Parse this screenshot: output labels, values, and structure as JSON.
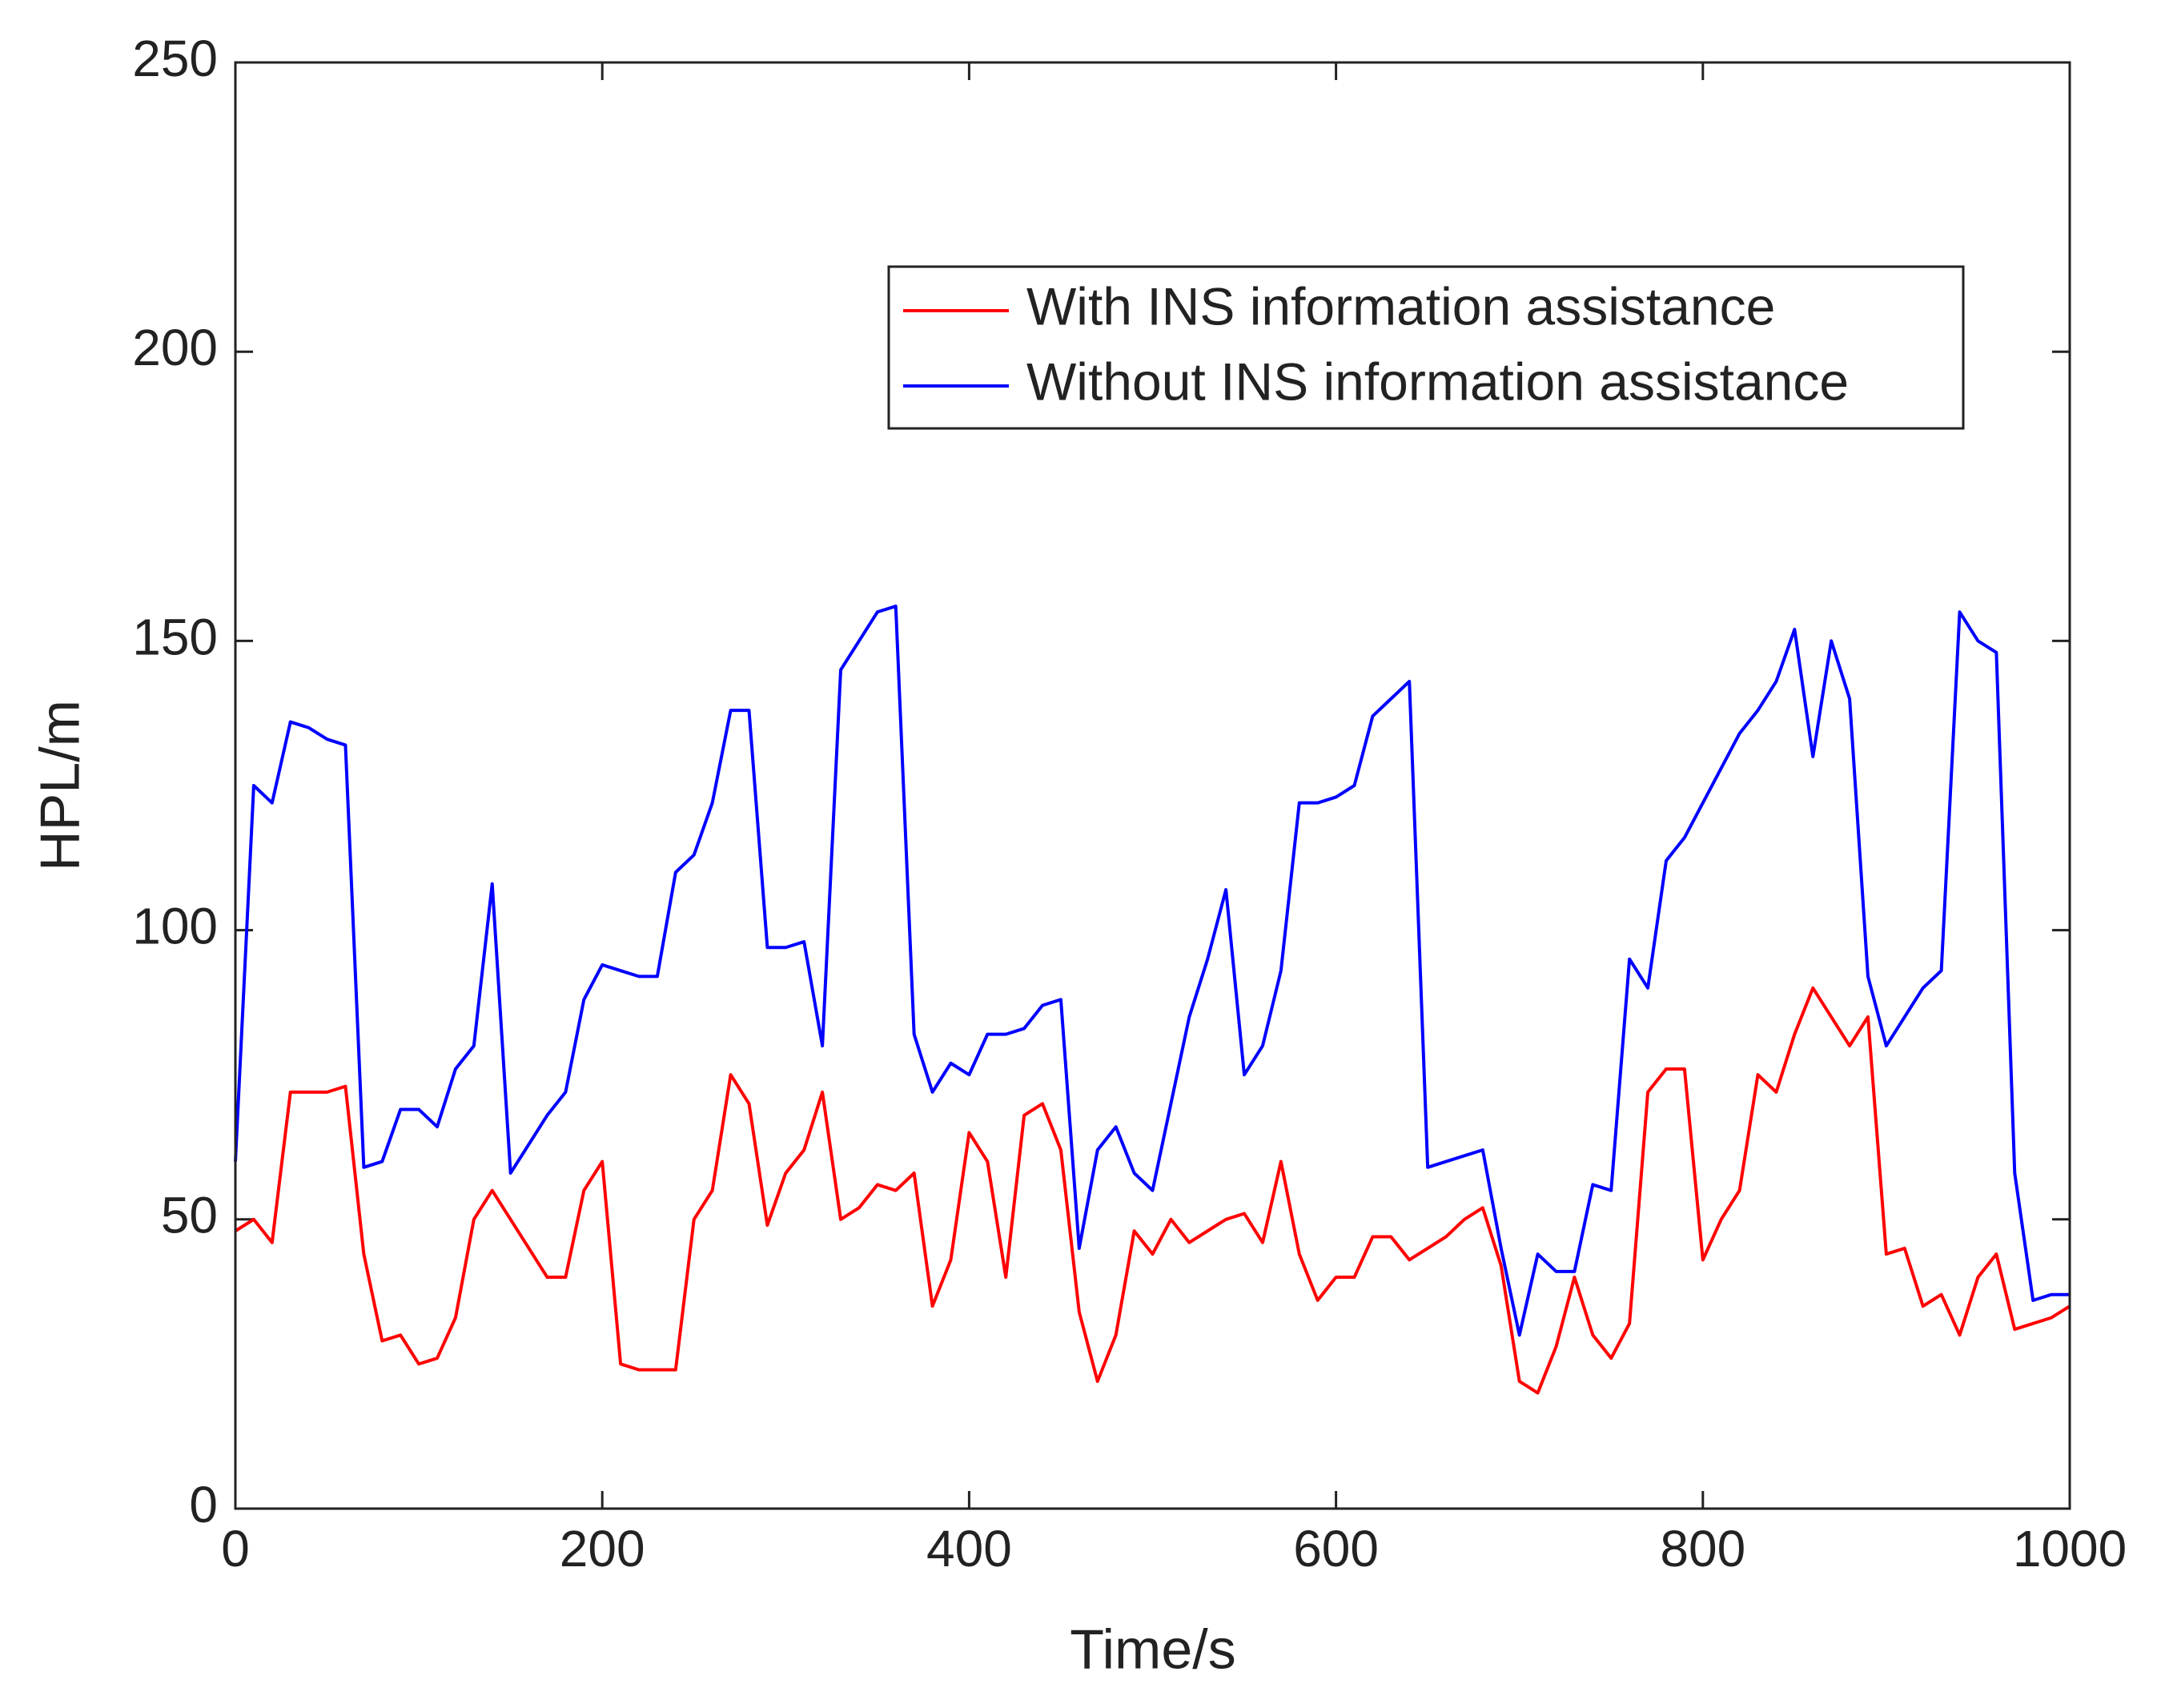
{
  "chart_data": {
    "type": "line",
    "xlabel": "Time/s",
    "ylabel": "HPL/m",
    "x": [
      0,
      10,
      20,
      30,
      40,
      50,
      60,
      70,
      80,
      90,
      100,
      110,
      120,
      130,
      140,
      150,
      160,
      170,
      180,
      190,
      200,
      210,
      220,
      230,
      240,
      250,
      260,
      270,
      280,
      290,
      300,
      310,
      320,
      330,
      340,
      350,
      360,
      370,
      380,
      390,
      400,
      410,
      420,
      430,
      440,
      450,
      460,
      470,
      480,
      490,
      500,
      510,
      520,
      530,
      540,
      550,
      560,
      570,
      580,
      590,
      600,
      610,
      620,
      630,
      640,
      650,
      660,
      670,
      680,
      690,
      700,
      710,
      720,
      730,
      740,
      750,
      760,
      770,
      780,
      790,
      800,
      810,
      820,
      830,
      840,
      850,
      860,
      870,
      880,
      890,
      900,
      910,
      920,
      930,
      940,
      950,
      960,
      970,
      980,
      990,
      1000
    ],
    "series": [
      {
        "name": "With INS information assistance",
        "color": "#ff0000",
        "values": [
          48,
          50,
          46,
          72,
          72,
          72,
          73,
          44,
          29,
          30,
          25,
          26,
          33,
          50,
          55,
          50,
          45,
          40,
          40,
          55,
          60,
          25,
          24,
          24,
          24,
          50,
          55,
          75,
          70,
          49,
          58,
          62,
          72,
          50,
          52,
          56,
          55,
          58,
          35,
          43,
          65,
          60,
          40,
          68,
          70,
          62,
          34,
          22,
          30,
          48,
          44,
          50,
          46,
          48,
          50,
          51,
          46,
          60,
          44,
          36,
          40,
          40,
          47,
          47,
          43,
          45,
          47,
          50,
          52,
          42,
          22,
          20,
          28,
          40,
          30,
          26,
          32,
          72,
          76,
          76,
          43,
          50,
          55,
          75,
          72,
          82,
          90,
          85,
          80,
          85,
          44,
          45,
          35,
          37,
          30,
          40,
          44,
          31,
          32,
          33,
          35
        ]
      },
      {
        "name": "Without INS information assistance",
        "color": "#0000ff",
        "values": [
          60,
          125,
          122,
          136,
          135,
          133,
          132,
          59,
          60,
          69,
          69,
          66,
          76,
          80,
          108,
          58,
          63,
          68,
          72,
          88,
          94,
          93,
          92,
          92,
          110,
          113,
          122,
          138,
          138,
          97,
          97,
          98,
          80,
          145,
          150,
          155,
          156,
          82,
          72,
          77,
          75,
          82,
          82,
          83,
          87,
          88,
          45,
          62,
          66,
          58,
          55,
          70,
          85,
          95,
          107,
          75,
          80,
          93,
          122,
          122,
          123,
          125,
          137,
          140,
          143,
          59,
          60,
          61,
          62,
          45,
          30,
          44,
          41,
          41,
          56,
          55,
          95,
          90,
          112,
          116,
          122,
          128,
          134,
          138,
          143,
          152,
          130,
          150,
          140,
          92,
          80,
          85,
          90,
          93,
          155,
          150,
          148,
          58,
          36,
          37,
          37
        ]
      }
    ],
    "xlim": [
      0,
      1000
    ],
    "xticks": [
      0,
      200,
      400,
      600,
      800,
      1000
    ],
    "ylim": [
      0,
      250
    ],
    "yticks": [
      0,
      50,
      100,
      150,
      200,
      250
    ],
    "legend": "upper right"
  }
}
